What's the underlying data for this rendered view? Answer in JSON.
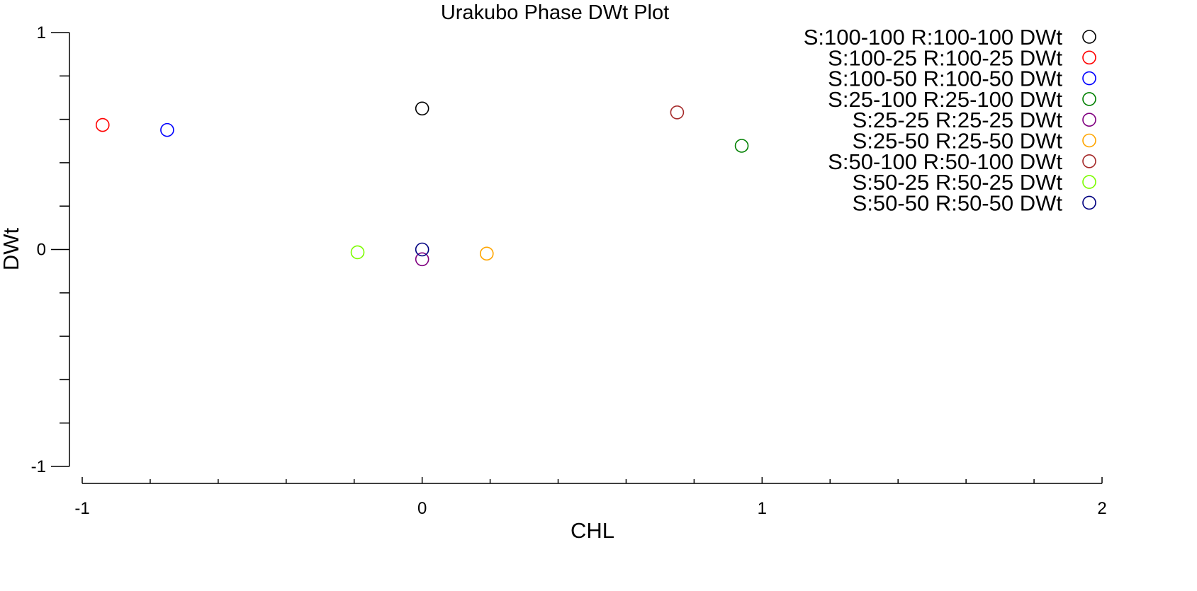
{
  "chart_data": {
    "type": "scatter",
    "title": "Urakubo Phase DWt Plot",
    "xlabel": "CHL",
    "ylabel": "DWt",
    "xlim": [
      -1,
      2
    ],
    "ylim": [
      -1,
      1
    ],
    "x_ticks": [
      {
        "value": -1,
        "label": "-1"
      },
      {
        "value": 0,
        "label": "0"
      },
      {
        "value": 1,
        "label": "1"
      },
      {
        "value": 2,
        "label": "2"
      }
    ],
    "x_minor_step": 0.2,
    "y_ticks": [
      {
        "value": 1,
        "label": "1"
      },
      {
        "value": 0,
        "label": "0"
      },
      {
        "value": -1,
        "label": "-1"
      }
    ],
    "y_minor_step": 0.2,
    "grid": false,
    "legend_position": "top-right",
    "marker": "open-circle",
    "series": [
      {
        "name": "S:100-100 R:100-100 DWt",
        "color": "#000000",
        "x": [
          0.0
        ],
        "y": [
          0.65
        ]
      },
      {
        "name": "S:100-25 R:100-25 DWt",
        "color": "#ff0000",
        "x": [
          -0.94
        ],
        "y": [
          0.574
        ]
      },
      {
        "name": "S:100-50 R:100-50 DWt",
        "color": "#0000ff",
        "x": [
          -0.75
        ],
        "y": [
          0.551
        ]
      },
      {
        "name": "S:25-100 R:25-100 DWt",
        "color": "#008000",
        "x": [
          0.94
        ],
        "y": [
          0.478
        ]
      },
      {
        "name": "S:25-25 R:25-25 DWt",
        "color": "#800080",
        "x": [
          0.0
        ],
        "y": [
          -0.045
        ]
      },
      {
        "name": "S:25-50 R:25-50 DWt",
        "color": "#ffa500",
        "x": [
          0.19
        ],
        "y": [
          -0.019
        ]
      },
      {
        "name": "S:50-100 R:50-100 DWt",
        "color": "#a52a2a",
        "x": [
          0.75
        ],
        "y": [
          0.632
        ]
      },
      {
        "name": "S:50-25 R:50-25 DWt",
        "color": "#7cfc00",
        "x": [
          -0.19
        ],
        "y": [
          -0.013
        ]
      },
      {
        "name": "S:50-50 R:50-50 DWt",
        "color": "#000080",
        "x": [
          0.0
        ],
        "y": [
          0.0
        ]
      }
    ]
  }
}
